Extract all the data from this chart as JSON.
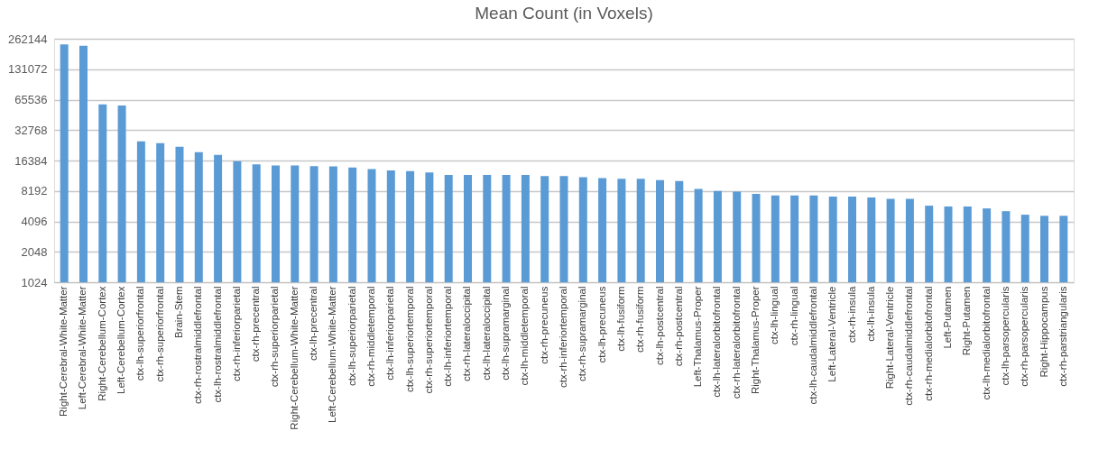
{
  "chart_data": {
    "type": "bar",
    "title": "Mean Count (in Voxels)",
    "categories": [
      "Right-Cerebral-White-Matter",
      "Left-Cerebral-White-Matter",
      "Right-Cerebellum-Cortex",
      "Left-Cerebellum-Cortex",
      "ctx-lh-superiorfrontal",
      "ctx-rh-superiorfrontal",
      "Brain-Stem",
      "ctx-rh-rostralmiddlefrontal",
      "ctx-lh-rostralmiddlefrontal",
      "ctx-rh-inferiorparietal",
      "ctx-rh-precentral",
      "ctx-rh-superiorparietal",
      "Right-Cerebellum-White-Matter",
      "ctx-lh-precentral",
      "Left-Cerebellum-White-Matter",
      "ctx-lh-superiorparietal",
      "ctx-rh-middletemporal",
      "ctx-lh-inferiorparietal",
      "ctx-lh-superiortemporal",
      "ctx-rh-superiortemporal",
      "ctx-lh-inferiortemporal",
      "ctx-rh-lateraloccipital",
      "ctx-lh-lateraloccipital",
      "ctx-lh-supramarginal",
      "ctx-lh-middletemporal",
      "ctx-rh-precuneus",
      "ctx-rh-inferiortemporal",
      "ctx-rh-supramarginal",
      "ctx-lh-precuneus",
      "ctx-lh-fusiform",
      "ctx-rh-fusiform",
      "ctx-lh-postcentral",
      "ctx-rh-postcentral",
      "Left-Thalamus-Proper",
      "ctx-lh-lateralorbitofrontal",
      "ctx-rh-lateralorbitofrontal",
      "Right-Thalamus-Proper",
      "ctx-lh-lingual",
      "ctx-rh-lingual",
      "ctx-lh-caudalmiddlefrontal",
      "Left-Lateral-Ventricle",
      "ctx-rh-insula",
      "ctx-lh-insula",
      "Right-Lateral-Ventricle",
      "ctx-rh-caudalmiddlefrontal",
      "ctx-rh-medialorbitofrontal",
      "Left-Putamen",
      "Right-Putamen",
      "ctx-lh-medialorbitofrontal",
      "ctx-lh-parsopercularis",
      "ctx-rh-parsopercularis",
      "Right-Hippocampus",
      "ctx-rh-parstriangularis"
    ],
    "values": [
      230000,
      224000,
      58700,
      57200,
      25300,
      24300,
      22400,
      19800,
      18600,
      16150,
      15000,
      14600,
      14600,
      14400,
      14300,
      14000,
      13500,
      13100,
      12900,
      12500,
      11800,
      11800,
      11800,
      11800,
      11800,
      11500,
      11500,
      11200,
      10950,
      10800,
      10800,
      10500,
      10250,
      8600,
      8200,
      8080,
      7650,
      7380,
      7380,
      7380,
      7220,
      7220,
      7050,
      6840,
      6840,
      5860,
      5750,
      5750,
      5500,
      5170,
      4770,
      4650,
      4650
    ],
    "color": "#5b9bd5",
    "log": "y",
    "ylim": [
      1024,
      262144
    ],
    "yticks": [
      1024,
      2048,
      4096,
      8192,
      16384,
      32768,
      65536,
      131072,
      262144
    ],
    "grid": "y"
  }
}
